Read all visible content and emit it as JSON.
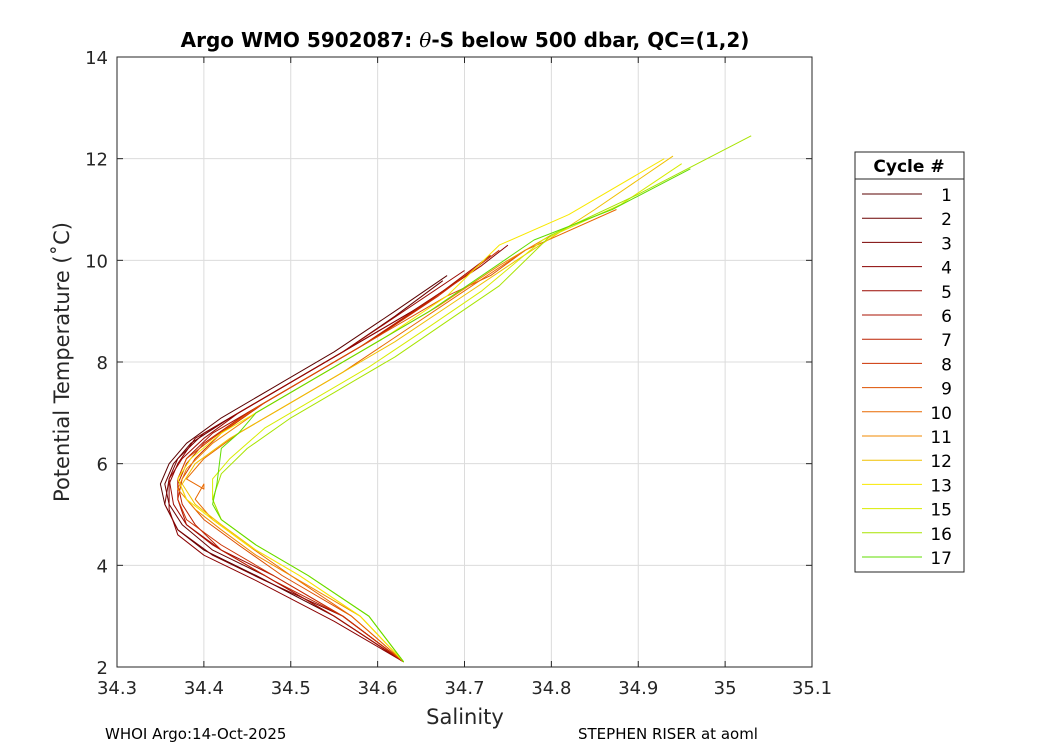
{
  "chart_data": {
    "type": "line",
    "title_prefix": "Argo WMO 5902087: ",
    "title_theta": "θ",
    "title_suffix": "-S below 500 dbar,  QC=(1,2)",
    "xlabel": "Salinity",
    "ylabel": "Potential Temperature (˚C)",
    "xlim": [
      34.3,
      35.1
    ],
    "ylim": [
      2,
      14
    ],
    "xticks": [
      "34.3",
      "34.4",
      "34.5",
      "34.6",
      "34.7",
      "34.8",
      "34.9",
      "35",
      "35.1"
    ],
    "yticks": [
      "2",
      "4",
      "6",
      "8",
      "10",
      "12",
      "14"
    ],
    "grid": true,
    "legend_title": "Cycle #",
    "legend_position": "right",
    "series": [
      {
        "name": "1",
        "color": "#5a0000",
        "points": [
          [
            34.63,
            2.1
          ],
          [
            34.55,
            3.0
          ],
          [
            34.46,
            3.8
          ],
          [
            34.4,
            4.3
          ],
          [
            34.37,
            4.7
          ],
          [
            34.355,
            5.2
          ],
          [
            34.35,
            5.6
          ],
          [
            34.36,
            6.0
          ],
          [
            34.38,
            6.4
          ],
          [
            34.42,
            6.9
          ],
          [
            34.48,
            7.5
          ],
          [
            34.55,
            8.2
          ],
          [
            34.62,
            9.0
          ],
          [
            34.68,
            9.7
          ]
        ]
      },
      {
        "name": "2",
        "color": "#6a0000",
        "points": [
          [
            34.63,
            2.1
          ],
          [
            34.55,
            3.0
          ],
          [
            34.47,
            3.8
          ],
          [
            34.41,
            4.3
          ],
          [
            34.375,
            4.8
          ],
          [
            34.36,
            5.2
          ],
          [
            34.355,
            5.6
          ],
          [
            34.365,
            6.0
          ],
          [
            34.385,
            6.4
          ],
          [
            34.43,
            6.9
          ],
          [
            34.49,
            7.5
          ],
          [
            34.56,
            8.2
          ],
          [
            34.62,
            8.9
          ],
          [
            34.675,
            9.6
          ]
        ]
      },
      {
        "name": "3",
        "color": "#7a0000",
        "points": [
          [
            34.63,
            2.1
          ],
          [
            34.56,
            3.0
          ],
          [
            34.47,
            3.7
          ],
          [
            34.41,
            4.2
          ],
          [
            34.37,
            4.7
          ],
          [
            34.355,
            5.2
          ],
          [
            34.36,
            5.7
          ],
          [
            34.37,
            6.1
          ],
          [
            34.4,
            6.6
          ],
          [
            34.45,
            7.1
          ],
          [
            34.51,
            7.7
          ],
          [
            34.58,
            8.4
          ],
          [
            34.65,
            9.1
          ],
          [
            34.71,
            9.8
          ]
        ]
      },
      {
        "name": "4",
        "color": "#8a0000",
        "points": [
          [
            34.63,
            2.1
          ],
          [
            34.55,
            2.9
          ],
          [
            34.46,
            3.7
          ],
          [
            34.4,
            4.2
          ],
          [
            34.37,
            4.6
          ],
          [
            34.36,
            5.1
          ],
          [
            34.36,
            5.6
          ],
          [
            34.37,
            6.0
          ],
          [
            34.39,
            6.5
          ],
          [
            34.44,
            7.0
          ],
          [
            34.5,
            7.6
          ],
          [
            34.57,
            8.3
          ],
          [
            34.64,
            9.0
          ],
          [
            34.72,
            9.9
          ],
          [
            34.75,
            10.3
          ]
        ]
      },
      {
        "name": "5",
        "color": "#9a0800",
        "points": [
          [
            34.63,
            2.1
          ],
          [
            34.56,
            3.0
          ],
          [
            34.48,
            3.8
          ],
          [
            34.42,
            4.3
          ],
          [
            34.38,
            4.8
          ],
          [
            34.365,
            5.2
          ],
          [
            34.36,
            5.7
          ],
          [
            34.375,
            6.1
          ],
          [
            34.4,
            6.5
          ],
          [
            34.44,
            7.0
          ],
          [
            34.5,
            7.6
          ],
          [
            34.56,
            8.2
          ],
          [
            34.63,
            9.0
          ],
          [
            34.7,
            9.8
          ]
        ]
      },
      {
        "name": "6",
        "color": "#aa1000",
        "points": [
          [
            34.63,
            2.1
          ],
          [
            34.55,
            3.0
          ],
          [
            34.47,
            3.8
          ],
          [
            34.41,
            4.4
          ],
          [
            34.38,
            4.8
          ],
          [
            34.37,
            5.3
          ],
          [
            34.37,
            5.7
          ],
          [
            34.38,
            6.1
          ],
          [
            34.41,
            6.6
          ],
          [
            34.46,
            7.1
          ],
          [
            34.52,
            7.7
          ],
          [
            34.59,
            8.4
          ],
          [
            34.66,
            9.2
          ],
          [
            34.73,
            10.1
          ]
        ]
      },
      {
        "name": "7",
        "color": "#bb2000",
        "points": [
          [
            34.63,
            2.1
          ],
          [
            34.56,
            3.0
          ],
          [
            34.48,
            3.7
          ],
          [
            34.42,
            4.3
          ],
          [
            34.39,
            4.8
          ],
          [
            34.375,
            5.2
          ],
          [
            34.37,
            5.6
          ],
          [
            34.38,
            6.0
          ],
          [
            34.4,
            6.4
          ],
          [
            34.45,
            7.0
          ],
          [
            34.51,
            7.6
          ],
          [
            34.58,
            8.3
          ],
          [
            34.65,
            9.1
          ],
          [
            34.72,
            9.9
          ]
        ]
      },
      {
        "name": "8",
        "color": "#cc3000",
        "points": [
          [
            34.63,
            2.1
          ],
          [
            34.56,
            3.0
          ],
          [
            34.48,
            3.8
          ],
          [
            34.42,
            4.4
          ],
          [
            34.38,
            4.9
          ],
          [
            34.37,
            5.3
          ],
          [
            34.375,
            5.7
          ],
          [
            34.39,
            6.1
          ],
          [
            34.42,
            6.6
          ],
          [
            34.47,
            7.2
          ],
          [
            34.53,
            7.8
          ],
          [
            34.6,
            8.5
          ],
          [
            34.67,
            9.3
          ],
          [
            34.74,
            10.2
          ]
        ]
      },
      {
        "name": "9",
        "color": "#dd5000",
        "points": [
          [
            34.63,
            2.1
          ],
          [
            34.57,
            3.0
          ],
          [
            34.49,
            3.8
          ],
          [
            34.44,
            4.4
          ],
          [
            34.4,
            4.9
          ],
          [
            34.38,
            5.3
          ],
          [
            34.37,
            5.7
          ],
          [
            34.38,
            6.1
          ],
          [
            34.41,
            6.5
          ],
          [
            34.46,
            7.1
          ],
          [
            34.53,
            7.8
          ],
          [
            34.61,
            8.6
          ],
          [
            34.68,
            9.3
          ],
          [
            34.73,
            9.7
          ],
          [
            34.77,
            10.2
          ]
        ]
      },
      {
        "name": "10",
        "color": "#e86800",
        "points": [
          [
            34.63,
            2.1
          ],
          [
            34.57,
            3.0
          ],
          [
            34.5,
            3.8
          ],
          [
            34.45,
            4.4
          ],
          [
            34.41,
            4.9
          ],
          [
            34.39,
            5.3
          ],
          [
            34.4,
            5.6
          ],
          [
            34.4,
            5.5
          ],
          [
            34.38,
            5.7
          ],
          [
            34.4,
            6.1
          ],
          [
            34.44,
            6.6
          ],
          [
            34.5,
            7.2
          ],
          [
            34.56,
            7.8
          ],
          [
            34.63,
            8.6
          ],
          [
            34.7,
            9.4
          ],
          [
            34.77,
            10.2
          ],
          [
            34.875,
            11.0
          ]
        ]
      },
      {
        "name": "11",
        "color": "#f08800",
        "points": [
          [
            34.63,
            2.1
          ],
          [
            34.58,
            3.0
          ],
          [
            34.51,
            3.7
          ],
          [
            34.46,
            4.2
          ],
          [
            34.42,
            4.7
          ],
          [
            34.39,
            5.1
          ],
          [
            34.37,
            5.5
          ],
          [
            34.38,
            5.9
          ],
          [
            34.41,
            6.4
          ],
          [
            34.46,
            7.0
          ],
          [
            34.52,
            7.6
          ],
          [
            34.59,
            8.3
          ],
          [
            34.67,
            9.1
          ],
          [
            34.74,
            9.9
          ],
          [
            34.8,
            10.5
          ]
        ]
      },
      {
        "name": "12",
        "color": "#f0c000",
        "points": [
          [
            34.63,
            2.1
          ],
          [
            34.58,
            3.0
          ],
          [
            34.51,
            3.8
          ],
          [
            34.46,
            4.3
          ],
          [
            34.42,
            4.8
          ],
          [
            34.39,
            5.2
          ],
          [
            34.375,
            5.6
          ],
          [
            34.39,
            6.0
          ],
          [
            34.43,
            6.5
          ],
          [
            34.49,
            7.1
          ],
          [
            34.55,
            7.7
          ],
          [
            34.62,
            8.4
          ],
          [
            34.69,
            9.2
          ],
          [
            34.76,
            10.0
          ],
          [
            34.85,
            11.0
          ],
          [
            34.94,
            12.05
          ]
        ]
      },
      {
        "name": "13",
        "color": "#f8e800",
        "points": [
          [
            34.63,
            2.1
          ],
          [
            34.58,
            3.0
          ],
          [
            34.51,
            3.8
          ],
          [
            34.45,
            4.4
          ],
          [
            34.41,
            4.9
          ],
          [
            34.38,
            5.3
          ],
          [
            34.37,
            5.7
          ],
          [
            34.385,
            6.1
          ],
          [
            34.42,
            6.6
          ],
          [
            34.48,
            7.2
          ],
          [
            34.54,
            7.8
          ],
          [
            34.61,
            8.5
          ],
          [
            34.68,
            9.3
          ],
          [
            34.74,
            10.3
          ],
          [
            34.82,
            10.9
          ],
          [
            34.93,
            12.0
          ]
        ]
      },
      {
        "name": "15",
        "color": "#d8ec00",
        "points": [
          [
            34.63,
            2.1
          ],
          [
            34.59,
            3.0
          ],
          [
            34.52,
            3.8
          ],
          [
            34.46,
            4.4
          ],
          [
            34.42,
            4.9
          ],
          [
            34.41,
            5.3
          ],
          [
            34.41,
            5.7
          ],
          [
            34.43,
            6.1
          ],
          [
            34.47,
            6.7
          ],
          [
            34.53,
            7.3
          ],
          [
            34.59,
            7.9
          ],
          [
            34.66,
            8.7
          ],
          [
            34.72,
            9.4
          ],
          [
            34.79,
            10.4
          ],
          [
            34.88,
            11.1
          ],
          [
            34.95,
            11.9
          ]
        ]
      },
      {
        "name": "16",
        "color": "#a8e400",
        "points": [
          [
            34.63,
            2.1
          ],
          [
            34.59,
            3.0
          ],
          [
            34.52,
            3.8
          ],
          [
            34.46,
            4.4
          ],
          [
            34.42,
            4.9
          ],
          [
            34.41,
            5.3
          ],
          [
            34.42,
            5.8
          ],
          [
            34.45,
            6.3
          ],
          [
            34.5,
            6.9
          ],
          [
            34.56,
            7.5
          ],
          [
            34.62,
            8.1
          ],
          [
            34.68,
            8.8
          ],
          [
            34.74,
            9.5
          ],
          [
            34.8,
            10.5
          ],
          [
            34.9,
            11.3
          ],
          [
            35.03,
            12.45
          ]
        ]
      },
      {
        "name": "17",
        "color": "#60dc00",
        "points": [
          [
            34.63,
            2.1
          ],
          [
            34.59,
            3.0
          ],
          [
            34.52,
            3.8
          ],
          [
            34.46,
            4.4
          ],
          [
            34.42,
            4.9
          ],
          [
            34.41,
            5.2
          ],
          [
            34.415,
            5.6
          ],
          [
            34.42,
            6.3
          ],
          [
            34.44,
            6.6
          ],
          [
            34.46,
            7.0
          ],
          [
            34.52,
            7.6
          ],
          [
            34.59,
            8.3
          ],
          [
            34.66,
            9.0
          ],
          [
            34.72,
            9.7
          ],
          [
            34.78,
            10.4
          ],
          [
            34.87,
            11.0
          ],
          [
            34.96,
            11.8
          ]
        ]
      }
    ]
  },
  "footer": {
    "left": "WHOI Argo:14-Oct-2025",
    "right": "STEPHEN RISER at aoml"
  }
}
